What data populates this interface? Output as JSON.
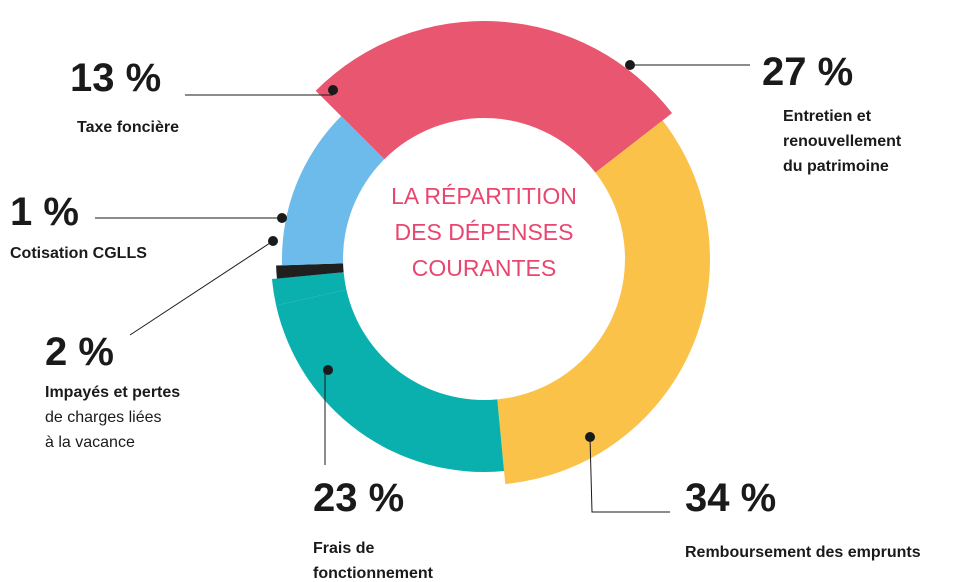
{
  "chart_data": {
    "type": "donut",
    "title": "LA RÉPARTITION DES DÉPENSES COURANTES",
    "categories": [
      [
        "Entretien et",
        "renouvellement",
        "du patrimoine"
      ],
      [
        "Remboursement des emprunts"
      ],
      [
        "Frais de",
        "fonctionnement"
      ],
      [
        "Impayés et pertes",
        "de charges liées",
        "à la vacance"
      ],
      [
        "Cotisation CGLLS"
      ],
      [
        "Taxe foncière"
      ]
    ],
    "values": [
      27,
      34,
      23,
      2,
      1,
      13
    ],
    "value_labels": [
      "27 %",
      "34 %",
      "23 %",
      "2 %",
      "1 %",
      "13 %"
    ],
    "colors": [
      "#e9566f",
      "#fbc24a",
      "#09b0ad",
      "#09b0ad",
      "#1f1f1f",
      "#6dbbea"
    ],
    "title_color": "#e9466f"
  }
}
